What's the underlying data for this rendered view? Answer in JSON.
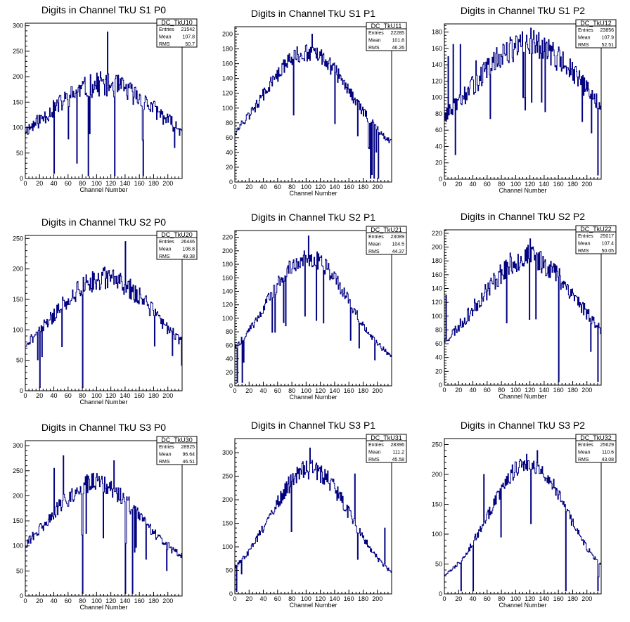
{
  "style": {
    "line_color": "#000080",
    "frame_color": "#000000",
    "background": "#ffffff"
  },
  "chart_data": [
    {
      "type": "histogram",
      "title": "Digits in Channel TkU S1 P0",
      "xlabel": "Channel Number",
      "ylabel": "",
      "xlim": [
        0,
        220
      ],
      "ylim": [
        0,
        305
      ],
      "xticks": [
        0,
        20,
        40,
        60,
        80,
        100,
        120,
        140,
        160,
        180,
        200
      ],
      "yticks": [
        0,
        50,
        100,
        150,
        200,
        250,
        300
      ],
      "stats": {
        "name": "DC_TkU10",
        "entries": "21542",
        "mean": "107.8",
        "rms": "50.7"
      },
      "profile": {
        "peak": 185,
        "center": 110,
        "width": 78,
        "edge": 40,
        "noise": 0.13,
        "seed": 11
      },
      "spikes": [
        [
          115,
          288
        ],
        [
          88,
          5
        ],
        [
          40,
          10
        ],
        [
          165,
          5
        ],
        [
          125,
          5
        ],
        [
          72,
          30
        ],
        [
          105,
          210
        ]
      ]
    },
    {
      "type": "histogram",
      "title": "Digits in Channel TkU S1 P1",
      "xlabel": "Channel Number",
      "ylabel": "",
      "xlim": [
        0,
        220
      ],
      "ylim": [
        0,
        210
      ],
      "xticks": [
        0,
        20,
        40,
        60,
        80,
        100,
        120,
        140,
        160,
        180,
        200
      ],
      "yticks": [
        0,
        20,
        40,
        60,
        80,
        100,
        120,
        140,
        160,
        180,
        200
      ],
      "stats": {
        "name": "DC_TkU11",
        "entries": "22285",
        "mean": "101.8",
        "rms": "46.26"
      },
      "profile": {
        "peak": 175,
        "center": 102,
        "width": 62,
        "edge": 30,
        "noise": 0.07,
        "seed": 12
      },
      "spikes": [
        [
          108,
          200
        ],
        [
          190,
          5
        ],
        [
          195,
          5
        ],
        [
          201,
          5
        ],
        [
          192,
          10
        ],
        [
          188,
          45
        ]
      ]
    },
    {
      "type": "histogram",
      "title": "Digits in Channel TkU S1 P2",
      "xlabel": "Channel Number",
      "ylabel": "",
      "xlim": [
        0,
        220
      ],
      "ylim": [
        0,
        190
      ],
      "xticks": [
        0,
        20,
        40,
        60,
        80,
        100,
        120,
        140,
        160,
        180,
        200
      ],
      "yticks": [
        0,
        20,
        40,
        60,
        80,
        100,
        120,
        140,
        160,
        180
      ],
      "stats": {
        "name": "DC_TkU12",
        "entries": "23856",
        "mean": "107.9",
        "rms": "52.51"
      },
      "profile": {
        "peak": 165,
        "center": 118,
        "width": 78,
        "edge": 35,
        "noise": 0.11,
        "seed": 13
      },
      "spikes": [
        [
          5,
          150
        ],
        [
          12,
          165
        ],
        [
          22,
          165
        ],
        [
          44,
          145
        ],
        [
          15,
          30
        ],
        [
          121,
          185
        ],
        [
          215,
          5
        ]
      ]
    },
    {
      "type": "histogram",
      "title": "Digits in Channel TkU S2 P0",
      "xlabel": "Channel Number",
      "ylabel": "",
      "xlim": [
        0,
        220
      ],
      "ylim": [
        0,
        255
      ],
      "xticks": [
        0,
        20,
        40,
        60,
        80,
        100,
        120,
        140,
        160,
        180,
        200
      ],
      "yticks": [
        0,
        50,
        100,
        150,
        200,
        250
      ],
      "stats": {
        "name": "DC_TkU20",
        "entries": "26446",
        "mean": "108.8",
        "rms": "49.38"
      },
      "profile": {
        "peak": 185,
        "center": 112,
        "width": 72,
        "edge": 30,
        "noise": 0.1,
        "seed": 21
      },
      "spikes": [
        [
          140,
          245
        ],
        [
          80,
          5
        ],
        [
          20,
          5
        ],
        [
          185,
          130
        ],
        [
          190,
          110
        ]
      ]
    },
    {
      "type": "histogram",
      "title": "Digits in Channel TkU S2 P1",
      "xlabel": "Channel Number",
      "ylabel": "",
      "xlim": [
        0,
        220
      ],
      "ylim": [
        0,
        230
      ],
      "xticks": [
        0,
        20,
        40,
        60,
        80,
        100,
        120,
        140,
        160,
        180,
        200
      ],
      "yticks": [
        0,
        20,
        40,
        60,
        80,
        100,
        120,
        140,
        160,
        180,
        200,
        220
      ],
      "stats": {
        "name": "DC_TkU21",
        "entries": "23089",
        "mean": "104.5",
        "rms": "44.37"
      },
      "profile": {
        "peak": 190,
        "center": 103,
        "width": 58,
        "edge": 22,
        "noise": 0.07,
        "seed": 22
      },
      "spikes": [
        [
          103,
          222
        ],
        [
          3,
          5
        ],
        [
          10,
          5
        ],
        [
          12,
          35
        ]
      ]
    },
    {
      "type": "histogram",
      "title": "Digits in Channel TkU S2 P2",
      "xlabel": "Channel Number",
      "ylabel": "",
      "xlim": [
        0,
        220
      ],
      "ylim": [
        0,
        225
      ],
      "xticks": [
        0,
        20,
        40,
        60,
        80,
        100,
        120,
        140,
        160,
        180,
        200
      ],
      "yticks": [
        0,
        20,
        40,
        60,
        80,
        100,
        120,
        140,
        160,
        180,
        200,
        220
      ],
      "stats": {
        "name": "DC_TkU22",
        "entries": "25017",
        "mean": "107.4",
        "rms": "50.05"
      },
      "profile": {
        "peak": 185,
        "center": 118,
        "width": 68,
        "edge": 30,
        "noise": 0.1,
        "seed": 23
      },
      "spikes": [
        [
          120,
          212
        ],
        [
          160,
          5
        ],
        [
          215,
          5
        ],
        [
          2,
          130
        ]
      ]
    },
    {
      "type": "histogram",
      "title": "Digits in Channel TkU S3 P0",
      "xlabel": "Channel Number",
      "ylabel": "",
      "xlim": [
        0,
        220
      ],
      "ylim": [
        0,
        310
      ],
      "xticks": [
        0,
        20,
        40,
        60,
        80,
        100,
        120,
        140,
        160,
        180,
        200
      ],
      "yticks": [
        0,
        50,
        100,
        150,
        200,
        250,
        300
      ],
      "stats": {
        "name": "DC_TkU30",
        "entries": "28925",
        "mean": "96.64",
        "rms": "46.51"
      },
      "profile": {
        "peak": 225,
        "center": 98,
        "width": 62,
        "edge": 55,
        "noise": 0.09,
        "seed": 31
      },
      "spikes": [
        [
          53,
          280
        ],
        [
          80,
          5
        ],
        [
          140,
          5
        ],
        [
          150,
          5
        ],
        [
          40,
          255
        ],
        [
          124,
          270
        ]
      ]
    },
    {
      "type": "histogram",
      "title": "Digits in Channel TkU S3 P1",
      "xlabel": "Channel Number",
      "ylabel": "",
      "xlim": [
        0,
        220
      ],
      "ylim": [
        0,
        330
      ],
      "xticks": [
        0,
        20,
        40,
        60,
        80,
        100,
        120,
        140,
        160,
        180,
        200
      ],
      "yticks": [
        0,
        50,
        100,
        150,
        200,
        250,
        300
      ],
      "stats": {
        "name": "DC_TkU31",
        "entries": "28396",
        "mean": "111.2",
        "rms": "45.58"
      },
      "profile": {
        "peak": 265,
        "center": 106,
        "width": 56,
        "edge": 15,
        "noise": 0.08,
        "seed": 32
      },
      "spikes": [
        [
          105,
          310
        ],
        [
          168,
          255
        ],
        [
          210,
          140
        ],
        [
          2,
          5
        ]
      ]
    },
    {
      "type": "histogram",
      "title": "Digits in Channel TkU S3 P2",
      "xlabel": "Channel Number",
      "ylabel": "",
      "xlim": [
        0,
        220
      ],
      "ylim": [
        0,
        260
      ],
      "xticks": [
        0,
        20,
        40,
        60,
        80,
        100,
        120,
        140,
        160,
        180,
        200
      ],
      "yticks": [
        0,
        50,
        100,
        150,
        200,
        250
      ],
      "stats": {
        "name": "DC_TkU32",
        "entries": "25629",
        "mean": "110.6",
        "rms": "43.08"
      },
      "profile": {
        "peak": 220,
        "center": 118,
        "width": 54,
        "edge": 12,
        "noise": 0.07,
        "seed": 33
      },
      "spikes": [
        [
          130,
          240
        ],
        [
          23,
          5
        ],
        [
          40,
          5
        ],
        [
          170,
          5
        ],
        [
          215,
          5
        ],
        [
          55,
          200
        ],
        [
          43,
          100
        ]
      ]
    }
  ]
}
